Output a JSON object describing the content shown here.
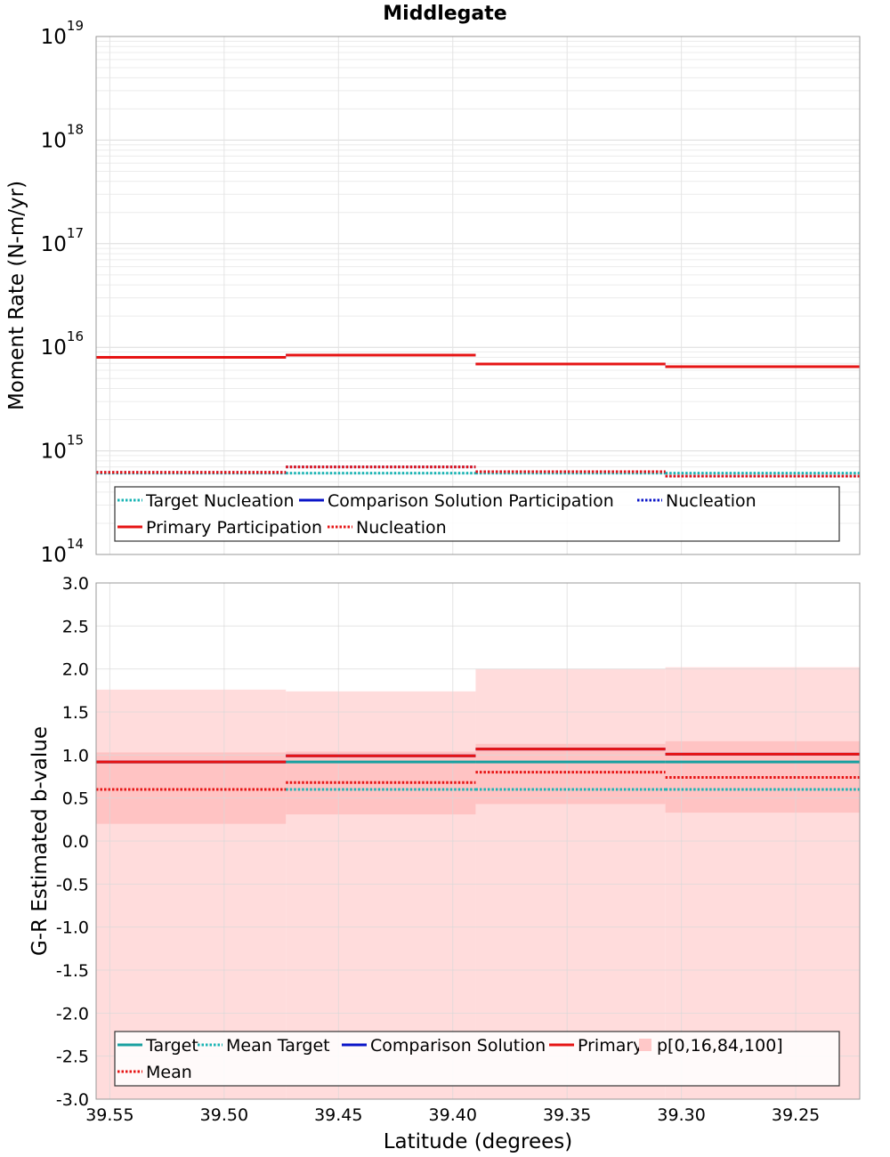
{
  "chart_data": [
    {
      "type": "line",
      "title": "Middlegate",
      "ylabel": "Moment Rate (N-m/yr)",
      "xlabel": "",
      "yscale": "log",
      "ylim": [
        100000000000000.0,
        1e+19
      ],
      "xlim": [
        39.556,
        39.222
      ],
      "x_reversed": true,
      "grid": true,
      "legend": "bottom-left",
      "y_ticks": [
        {
          "base": "10",
          "exp": "14",
          "value": 100000000000000.0
        },
        {
          "base": "10",
          "exp": "15",
          "value": 1000000000000000.0
        },
        {
          "base": "10",
          "exp": "16",
          "value": 1e+16
        },
        {
          "base": "10",
          "exp": "17",
          "value": 1e+17
        },
        {
          "base": "10",
          "exp": "18",
          "value": 1e+18
        },
        {
          "base": "10",
          "exp": "19",
          "value": 1e+19
        }
      ],
      "bin_edges": [
        39.556,
        39.473,
        39.39,
        39.307,
        39.222
      ],
      "series": [
        {
          "name": "Target Nucleation",
          "color": "#19b4b4",
          "style": "dotted",
          "values": [
            610000000000000.0,
            610000000000000.0,
            610000000000000.0,
            610000000000000.0
          ]
        },
        {
          "name": "Comparison Solution Participation",
          "color": "#0a14c8",
          "style": "solid",
          "values": [
            8000000000000000.0,
            8400000000000000.0,
            6900000000000000.0,
            6500000000000000.0
          ]
        },
        {
          "name": "Nucleation",
          "color": "#0a14c8",
          "style": "dotted",
          "values": [
            620000000000000.0,
            700000000000000.0,
            630000000000000.0,
            570000000000000.0
          ]
        },
        {
          "name": "Primary Participation",
          "color": "#e61414",
          "style": "solid",
          "values": [
            8000000000000000.0,
            8400000000000000.0,
            6900000000000000.0,
            6500000000000000.0
          ]
        },
        {
          "name": "Nucleation",
          "color": "#e61414",
          "style": "dotted",
          "values": [
            620000000000000.0,
            700000000000000.0,
            630000000000000.0,
            570000000000000.0
          ]
        }
      ],
      "legend_entries": [
        {
          "label": "Target Nucleation",
          "color": "#19b4b4",
          "style": "dotted"
        },
        {
          "label": "Comparison Solution Participation",
          "color": "#0a14c8",
          "style": "solid"
        },
        {
          "label": "Nucleation",
          "color": "#0a14c8",
          "style": "dotted"
        },
        {
          "label": "Primary Participation",
          "color": "#e61414",
          "style": "solid"
        },
        {
          "label": "Nucleation",
          "color": "#e61414",
          "style": "dotted"
        }
      ]
    },
    {
      "type": "line",
      "title": "",
      "ylabel": "G-R Estimated b-value",
      "xlabel": "Latitude (degrees)",
      "ylim": [
        -3.0,
        3.0
      ],
      "xlim": [
        39.556,
        39.222
      ],
      "x_reversed": true,
      "grid": true,
      "legend": "bottom-left",
      "y_ticks": [
        "-3.0",
        "-2.5",
        "-2.0",
        "-1.5",
        "-1.0",
        "-0.5",
        "0.0",
        "0.5",
        "1.0",
        "1.5",
        "2.0",
        "2.5",
        "3.0"
      ],
      "x_ticks": [
        "39.55",
        "39.50",
        "39.45",
        "39.40",
        "39.35",
        "39.30",
        "39.25"
      ],
      "bin_edges": [
        39.556,
        39.473,
        39.39,
        39.307,
        39.222
      ],
      "bands": [
        {
          "name": "p[0,16,84,100] outer",
          "color": "#ffdcdc",
          "low": [
            -3.0,
            -3.0,
            -3.0,
            -3.0
          ],
          "high": [
            1.76,
            1.74,
            2.0,
            2.02
          ]
        },
        {
          "name": "p[0,16,84,100] inner",
          "color": "#ffc3c3",
          "low": [
            0.2,
            0.31,
            0.43,
            0.33
          ],
          "high": [
            1.03,
            1.04,
            1.13,
            1.16
          ]
        }
      ],
      "series": [
        {
          "name": "Target",
          "color": "#19a0a0",
          "style": "solid",
          "values": [
            0.92,
            0.92,
            0.92,
            0.92
          ]
        },
        {
          "name": "Mean Target",
          "color": "#19b4b4",
          "style": "dotted",
          "values": [
            0.6,
            0.6,
            0.6,
            0.6
          ]
        },
        {
          "name": "Comparison Solution",
          "color": "#0a14c8",
          "style": "solid",
          "values": [
            0.92,
            0.99,
            1.07,
            1.01
          ]
        },
        {
          "name": "Primary",
          "color": "#e61414",
          "style": "solid",
          "values": [
            0.92,
            0.99,
            1.07,
            1.01
          ]
        },
        {
          "name": "Mean",
          "color": "#e61414",
          "style": "dotted",
          "values": [
            0.6,
            0.68,
            0.8,
            0.74
          ]
        }
      ],
      "legend_entries": [
        {
          "label": "Target",
          "color": "#19a0a0",
          "style": "solid"
        },
        {
          "label": "Mean Target",
          "color": "#19b4b4",
          "style": "dotted"
        },
        {
          "label": "Comparison Solution",
          "color": "#0a14c8",
          "style": "solid"
        },
        {
          "label": "Primary",
          "color": "#e61414",
          "style": "solid"
        },
        {
          "label": "p[0,16,84,100]",
          "color": "#ffc8c8",
          "style": "box"
        },
        {
          "label": "Mean",
          "color": "#e61414",
          "style": "dotted"
        }
      ]
    }
  ]
}
